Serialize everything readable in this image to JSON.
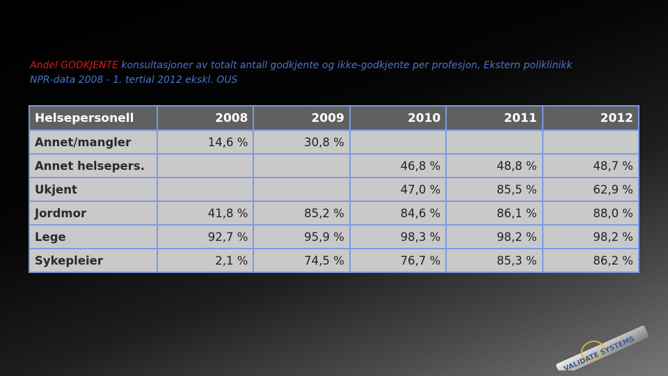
{
  "title": {
    "highlight": "Andel GODKJENTE",
    "rest": " konsultasjoner av totalt antall godkjente og ikke-godkjente per profesjon, Ekstern poliklinikk",
    "subtitle": "NPR-data 2008 - 1. tertial 2012 ekskl. OUS"
  },
  "table": {
    "headers": [
      "Helsepersonell",
      "2008",
      "2009",
      "2010",
      "2011",
      "2012"
    ],
    "rows": [
      {
        "label": "Annet/mangler",
        "values": [
          "14,6 %",
          "30,8 %",
          "",
          "",
          ""
        ]
      },
      {
        "label": "Annet helsepers.",
        "values": [
          "",
          "",
          "46,8 %",
          "48,8 %",
          "48,7 %"
        ]
      },
      {
        "label": "Ukjent",
        "values": [
          "",
          "",
          "47,0 %",
          "85,5 %",
          "62,9 %"
        ]
      },
      {
        "label": "Jordmor",
        "values": [
          "41,8 %",
          "85,2 %",
          "84,6 %",
          "86,1 %",
          "88,0 %"
        ]
      },
      {
        "label": "Lege",
        "values": [
          "92,7 %",
          "95,9 %",
          "98,3 %",
          "98,2 %",
          "98,2 %"
        ]
      },
      {
        "label": "Sykepleier",
        "values": [
          "2,1 %",
          "74,5 %",
          "76,7 %",
          "85,3 %",
          "86,2 %"
        ]
      }
    ]
  },
  "logo": {
    "text": "VALIDATE SYSTEMS"
  },
  "colors": {
    "title": "#4a74c9",
    "highlight": "#e01818",
    "header_bg": "#606060",
    "cell_bg": "#c9c9c9",
    "grid": "#7a9ae0"
  }
}
